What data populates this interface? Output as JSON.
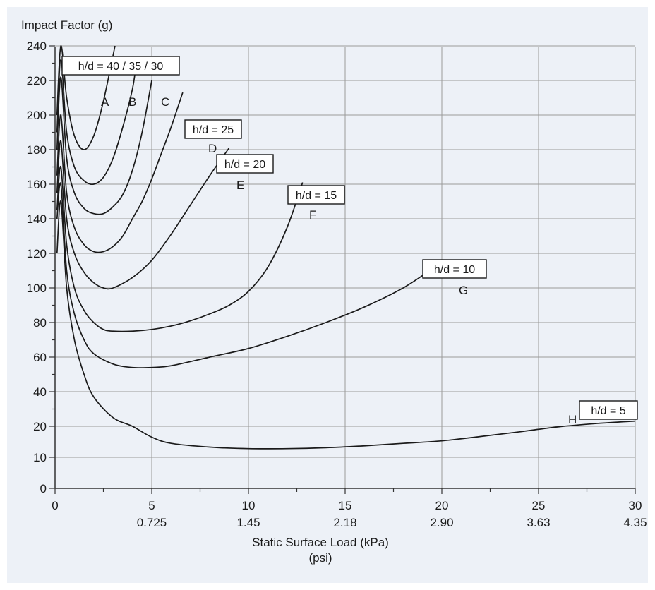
{
  "chart_data": {
    "type": "line",
    "title": "",
    "ylabel": "Impact Factor (g)",
    "xlabel": "Static Surface Load (kPa)",
    "xlabel2": "(psi)",
    "xlim": [
      0,
      30
    ],
    "ylim": [
      0,
      240
    ],
    "grid": true,
    "x_ticks": [
      0,
      5,
      10,
      15,
      20,
      25,
      30
    ],
    "x_secondary_ticks": [
      {
        "x": 5,
        "label": "0.725"
      },
      {
        "x": 10,
        "label": "1.45"
      },
      {
        "x": 15,
        "label": "2.18"
      },
      {
        "x": 20,
        "label": "2.90"
      },
      {
        "x": 25,
        "label": "3.63"
      },
      {
        "x": 30,
        "label": "4.35"
      }
    ],
    "y_ticks": [
      0,
      10,
      20,
      40,
      60,
      80,
      100,
      120,
      140,
      160,
      180,
      200,
      220,
      240
    ],
    "y_tick_labels": [
      "0",
      "10",
      "20",
      "40",
      "60",
      "80",
      "100",
      "120",
      "140",
      "160",
      "180",
      "200",
      "220",
      "240"
    ],
    "group_label": "h/d = 40 / 35 / 30",
    "series": [
      {
        "name": "A",
        "hd_label": "",
        "points": [
          [
            0.1,
            200
          ],
          [
            0.3,
            240
          ],
          [
            0.6,
            210
          ],
          [
            1.0,
            188
          ],
          [
            1.5,
            180
          ],
          [
            2.0,
            188
          ],
          [
            2.5,
            208
          ],
          [
            3.1,
            240
          ]
        ]
      },
      {
        "name": "B",
        "hd_label": "",
        "points": [
          [
            0.1,
            190
          ],
          [
            0.3,
            232
          ],
          [
            0.6,
            190
          ],
          [
            1.0,
            170
          ],
          [
            1.5,
            162
          ],
          [
            2.0,
            160
          ],
          [
            2.5,
            164
          ],
          [
            3.0,
            175
          ],
          [
            3.5,
            193
          ],
          [
            4.0,
            215
          ],
          [
            4.2,
            230
          ]
        ]
      },
      {
        "name": "C",
        "hd_label": "",
        "points": [
          [
            0.1,
            180
          ],
          [
            0.3,
            222
          ],
          [
            0.6,
            175
          ],
          [
            1.0,
            155
          ],
          [
            1.5,
            146
          ],
          [
            2.0,
            143
          ],
          [
            2.5,
            143
          ],
          [
            3.0,
            147
          ],
          [
            3.5,
            154
          ],
          [
            4.0,
            168
          ],
          [
            4.5,
            190
          ],
          [
            5.0,
            220
          ]
        ]
      },
      {
        "name": "D",
        "hd_label": "h/d = 25",
        "points": [
          [
            0.1,
            165
          ],
          [
            0.3,
            200
          ],
          [
            0.6,
            155
          ],
          [
            1.0,
            135
          ],
          [
            1.5,
            125
          ],
          [
            2.0,
            121
          ],
          [
            2.5,
            121
          ],
          [
            3.0,
            124
          ],
          [
            3.5,
            130
          ],
          [
            4.0,
            140
          ],
          [
            4.5,
            150
          ],
          [
            5.0,
            163
          ],
          [
            5.5,
            178
          ],
          [
            6.0,
            193
          ],
          [
            6.6,
            213
          ]
        ]
      },
      {
        "name": "E",
        "hd_label": "h/d = 20",
        "points": [
          [
            0.1,
            155
          ],
          [
            0.3,
            185
          ],
          [
            0.6,
            140
          ],
          [
            1.0,
            120
          ],
          [
            1.5,
            109
          ],
          [
            2.0,
            103
          ],
          [
            2.5,
            100
          ],
          [
            3.0,
            100
          ],
          [
            4.0,
            106
          ],
          [
            5.0,
            116
          ],
          [
            6.0,
            131
          ],
          [
            7.0,
            148
          ],
          [
            8.0,
            165
          ],
          [
            9.0,
            181
          ]
        ]
      },
      {
        "name": "F",
        "hd_label": "h/d = 15",
        "points": [
          [
            0.1,
            145
          ],
          [
            0.3,
            170
          ],
          [
            0.6,
            125
          ],
          [
            1.0,
            100
          ],
          [
            1.5,
            87
          ],
          [
            2.0,
            80
          ],
          [
            2.5,
            76
          ],
          [
            3.0,
            75
          ],
          [
            4.0,
            75
          ],
          [
            5.0,
            76
          ],
          [
            6.0,
            78
          ],
          [
            7.0,
            81
          ],
          [
            8.0,
            85
          ],
          [
            9.0,
            90
          ],
          [
            10.0,
            98
          ],
          [
            11.0,
            112
          ],
          [
            12.0,
            135
          ],
          [
            12.8,
            161
          ]
        ]
      },
      {
        "name": "G",
        "hd_label": "h/d = 10",
        "points": [
          [
            0.1,
            140
          ],
          [
            0.3,
            160
          ],
          [
            0.6,
            110
          ],
          [
            1.0,
            85
          ],
          [
            1.5,
            70
          ],
          [
            2.0,
            62
          ],
          [
            3.0,
            56
          ],
          [
            4.0,
            54
          ],
          [
            5.0,
            54
          ],
          [
            6.0,
            55
          ],
          [
            8.0,
            60
          ],
          [
            10.0,
            65
          ],
          [
            12.0,
            72
          ],
          [
            14.0,
            80
          ],
          [
            16.0,
            89
          ],
          [
            18.0,
            100
          ],
          [
            19.5,
            111
          ]
        ]
      },
      {
        "name": "H",
        "hd_label": "h/d = 5",
        "points": [
          [
            0.1,
            120
          ],
          [
            0.3,
            150
          ],
          [
            0.6,
            100
          ],
          [
            1.0,
            70
          ],
          [
            1.5,
            50
          ],
          [
            2.0,
            37
          ],
          [
            3.0,
            25
          ],
          [
            4.0,
            20
          ],
          [
            5.0,
            16.5
          ],
          [
            6.0,
            14.5
          ],
          [
            8.0,
            13.3
          ],
          [
            10.0,
            12.8
          ],
          [
            12.0,
            12.8
          ],
          [
            14.0,
            13.1
          ],
          [
            16.0,
            13.7
          ],
          [
            18.0,
            14.5
          ],
          [
            20.0,
            15.3
          ],
          [
            22.0,
            16.7
          ],
          [
            24.0,
            18.2
          ],
          [
            26.0,
            19.8
          ],
          [
            28.0,
            21.6
          ],
          [
            30.0,
            23.0
          ]
        ]
      }
    ]
  }
}
